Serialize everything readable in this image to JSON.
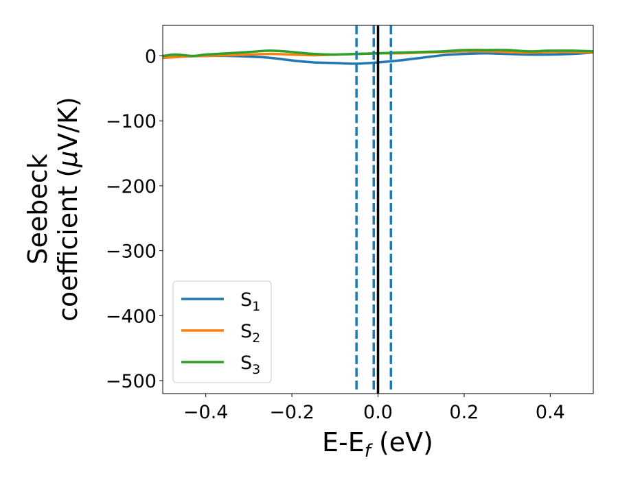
{
  "chart_data": {
    "type": "line",
    "xlabel": {
      "main": "E-E",
      "sub": "f",
      "tail": " (eV)"
    },
    "ylabel": {
      "line1": "Seebeck",
      "line2_main": "coefficient  (",
      "line2_mu": "μ",
      "line2_tail": "V/K)"
    },
    "xlim": [
      -0.5,
      0.5
    ],
    "ylim": [
      -520,
      47
    ],
    "xticks": [
      -0.4,
      -0.2,
      0.0,
      0.2,
      0.4
    ],
    "xtick_labels": [
      "−0.4",
      "−0.2",
      "0.0",
      "0.2",
      "0.4"
    ],
    "yticks": [
      0,
      -100,
      -200,
      -300,
      -400,
      -500
    ],
    "ytick_labels": [
      "0",
      "−100",
      "−200",
      "−300",
      "−400",
      "−500"
    ],
    "grid": false,
    "legend_position": "lower-left",
    "vertical_lines": [
      {
        "x": -0.05,
        "style": "dashed",
        "color": "#1f77b4"
      },
      {
        "x": -0.01,
        "style": "dashed",
        "color": "#1f77b4"
      },
      {
        "x": 0.03,
        "style": "dashed",
        "color": "#1f77b4"
      },
      {
        "x": 0.0,
        "style": "solid",
        "color": "#000000"
      }
    ],
    "series": [
      {
        "name": "S",
        "sub": "1",
        "color": "#1f77b4",
        "x": [
          -0.5,
          -0.45,
          -0.4,
          -0.35,
          -0.3,
          -0.25,
          -0.2,
          -0.15,
          -0.1,
          -0.05,
          0.0,
          0.05,
          0.1,
          0.15,
          0.2,
          0.25,
          0.3,
          0.35,
          0.4,
          0.45,
          0.5
        ],
        "y": [
          -3,
          -1,
          0,
          0,
          -1,
          -3,
          -7,
          -10,
          -11,
          -12,
          -10,
          -7,
          -3,
          1,
          3,
          4,
          3,
          2,
          2,
          3,
          5
        ]
      },
      {
        "name": "S",
        "sub": "2",
        "color": "#ff7f0e",
        "x": [
          -0.5,
          -0.45,
          -0.4,
          -0.35,
          -0.3,
          -0.25,
          -0.2,
          -0.15,
          -0.1,
          -0.05,
          0.0,
          0.05,
          0.1,
          0.15,
          0.2,
          0.25,
          0.3,
          0.35,
          0.4,
          0.45,
          0.5
        ],
        "y": [
          -3,
          -1,
          0,
          1,
          2,
          3,
          2,
          1,
          2,
          3,
          4,
          4,
          5,
          6,
          7,
          7,
          6,
          5,
          6,
          6,
          5
        ]
      },
      {
        "name": "S",
        "sub": "3",
        "color": "#2ca02c",
        "x": [
          -0.5,
          -0.47,
          -0.43,
          -0.4,
          -0.35,
          -0.3,
          -0.25,
          -0.2,
          -0.15,
          -0.1,
          -0.05,
          0.0,
          0.05,
          0.1,
          0.15,
          0.2,
          0.25,
          0.3,
          0.35,
          0.4,
          0.45,
          0.5
        ],
        "y": [
          0,
          2,
          0,
          2,
          4,
          6,
          8,
          6,
          3,
          2,
          3,
          4,
          5,
          6,
          7,
          9,
          9,
          9,
          7,
          8,
          8,
          7
        ]
      }
    ]
  }
}
